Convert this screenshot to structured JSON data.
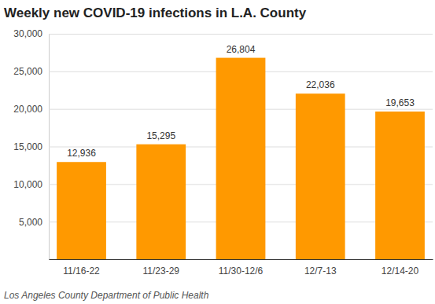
{
  "chart_data": {
    "type": "bar",
    "title": "Weekly new COVID-19 infections in L.A. County",
    "source": "Los Angeles County Department of Public Health",
    "categories": [
      "11/16-22",
      "11/23-29",
      "11/30-12/6",
      "12/7-13",
      "12/14-20"
    ],
    "values": [
      12936,
      15295,
      26804,
      22036,
      19653
    ],
    "value_labels": [
      "12,936",
      "15,295",
      "26,804",
      "22,036",
      "19,653"
    ],
    "color": "#ff9900",
    "ylim": [
      0,
      30000
    ],
    "yticks": [
      {
        "value": 5000,
        "label": "5,000"
      },
      {
        "value": 10000,
        "label": "10,000"
      },
      {
        "value": 15000,
        "label": "15,000"
      },
      {
        "value": 20000,
        "label": "20,000"
      },
      {
        "value": 25000,
        "label": "25,000"
      },
      {
        "value": 30000,
        "label": "30,000"
      }
    ],
    "grid": true,
    "data_labels": true
  }
}
